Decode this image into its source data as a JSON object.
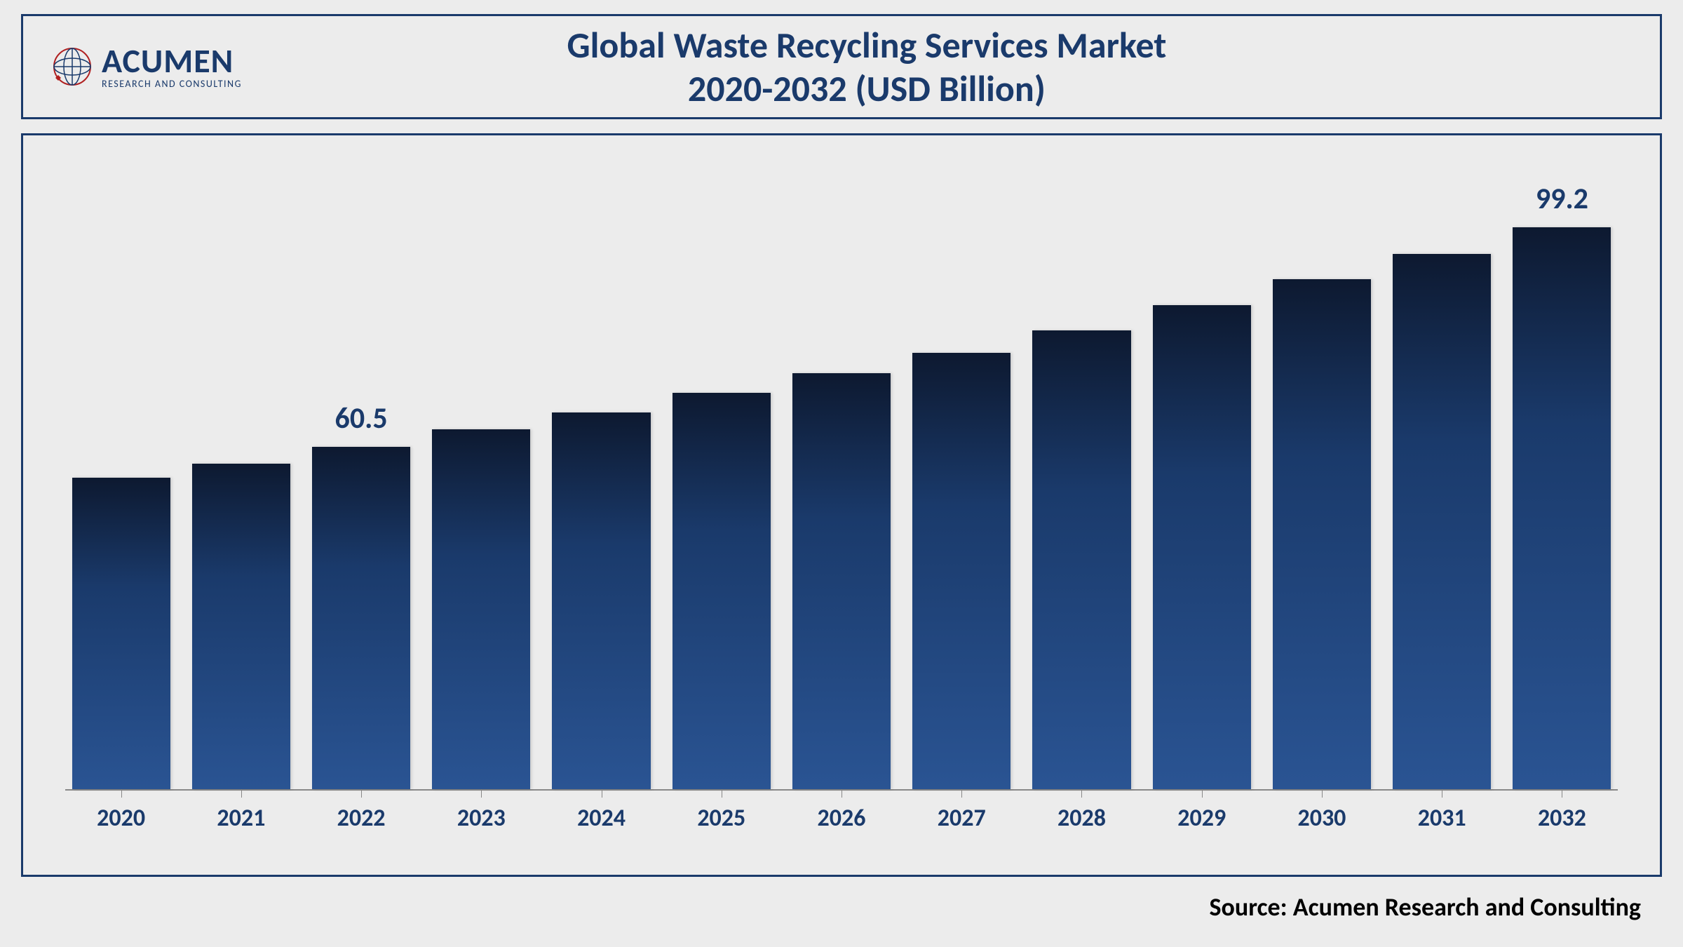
{
  "logo": {
    "main": "ACUMEN",
    "sub": "RESEARCH AND CONSULTING"
  },
  "title": {
    "line1": "Global Waste Recycling Services Market",
    "line2": "2020-2032 (USD Billion)"
  },
  "chart": {
    "type": "bar",
    "categories": [
      "2020",
      "2021",
      "2022",
      "2023",
      "2024",
      "2025",
      "2026",
      "2027",
      "2028",
      "2029",
      "2030",
      "2031",
      "2032"
    ],
    "values": [
      55.0,
      57.5,
      60.5,
      63.5,
      66.5,
      70.0,
      73.5,
      77.0,
      81.0,
      85.5,
      90.0,
      94.5,
      99.2
    ],
    "data_labels": {
      "2": "60.5",
      "12": "99.2"
    },
    "y_max": 108,
    "bar_gradient_top": "#0d1930",
    "bar_gradient_mid": "#1a3a6b",
    "bar_gradient_bottom": "#2a5493",
    "background_color": "#ececec",
    "border_color": "#1a3a6b",
    "label_color": "#1a3a6b",
    "label_fontsize": 42,
    "xaxis_fontsize": 34,
    "bar_width_pct": 88
  },
  "source": "Source: Acumen Research and Consulting"
}
